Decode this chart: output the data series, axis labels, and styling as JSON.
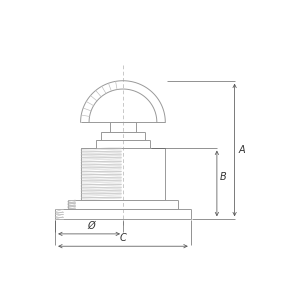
{
  "bg_color": "#ffffff",
  "line_color": "#999999",
  "dim_color": "#555555",
  "hatch_color": "#bbbbbb",
  "center_color": "#aaaaaa",
  "label_color": "#333333",
  "fig_size": [
    3.0,
    3.0
  ],
  "dpi": 100,
  "labels": {
    "A": "A",
    "B": "B",
    "phi": "Ø",
    "C": "C"
  }
}
